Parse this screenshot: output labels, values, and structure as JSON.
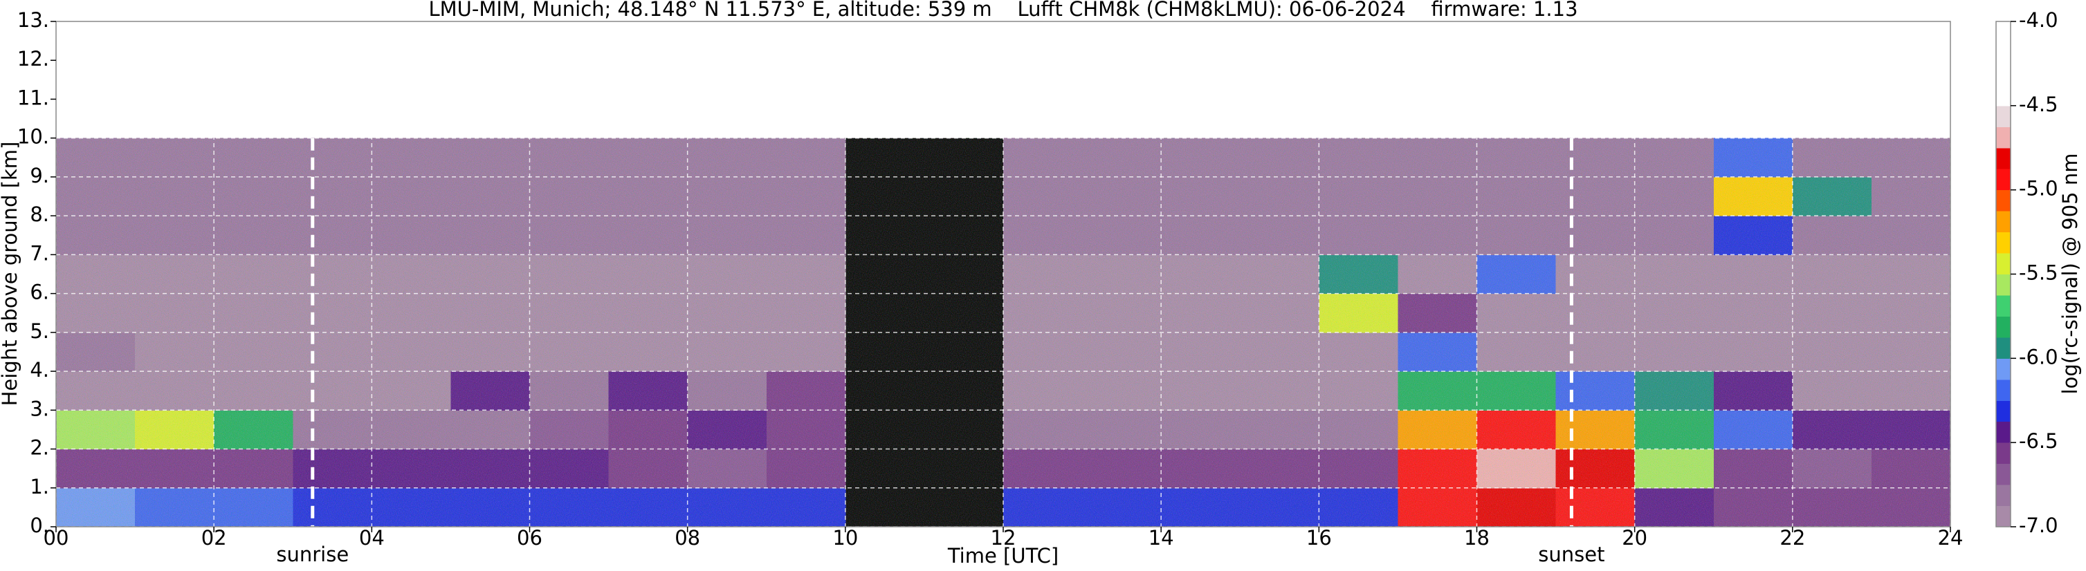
{
  "chart_data": {
    "type": "heatmap",
    "title": "LMU-MIM, Munich; 48.148° N 11.573° E, altitude: 539 m    Lufft CHM8k (CHM8kLMU): 06-06-2024    firmware: 1.13",
    "x_label": "Time [UTC]",
    "y_label": "Height above ground [km]",
    "colorbar_label": "log(rc-signal) @ 905 nm",
    "xlim": [
      0,
      24
    ],
    "ylim": [
      0,
      13
    ],
    "xticks": [
      {
        "value": 0,
        "label": "00"
      },
      {
        "value": 2,
        "label": "02"
      },
      {
        "value": 4,
        "label": "04"
      },
      {
        "value": 6,
        "label": "06"
      },
      {
        "value": 8,
        "label": "08"
      },
      {
        "value": 10,
        "label": "10"
      },
      {
        "value": 12,
        "label": "12"
      },
      {
        "value": 14,
        "label": "14"
      },
      {
        "value": 16,
        "label": "16"
      },
      {
        "value": 18,
        "label": "18"
      },
      {
        "value": 20,
        "label": "20"
      },
      {
        "value": 22,
        "label": "22"
      },
      {
        "value": 24,
        "label": "24"
      }
    ],
    "yticks": [
      {
        "value": 0,
        "label": "0."
      },
      {
        "value": 1,
        "label": "1."
      },
      {
        "value": 2,
        "label": "2."
      },
      {
        "value": 3,
        "label": "3."
      },
      {
        "value": 4,
        "label": "4."
      },
      {
        "value": 5,
        "label": "5."
      },
      {
        "value": 6,
        "label": "6."
      },
      {
        "value": 7,
        "label": "7."
      },
      {
        "value": 8,
        "label": "8."
      },
      {
        "value": 9,
        "label": "9."
      },
      {
        "value": 10,
        "label": "10."
      },
      {
        "value": 11,
        "label": "11."
      },
      {
        "value": 12,
        "label": "12."
      },
      {
        "value": 13,
        "label": "13."
      }
    ],
    "zlim": [
      -7,
      -4
    ],
    "zticks": [
      {
        "value": -4,
        "label": "-4.0"
      },
      -4.5,
      {
        "value": -5,
        "label": "-5.0"
      },
      -5.5,
      {
        "value": -6,
        "label": "-6.0"
      },
      -6.5,
      {
        "value": -7,
        "label": "-7.0"
      }
    ],
    "colors": [
      "#a88aa8",
      "#9a76a0",
      "#8a5896",
      "#7a3a8a",
      "#5a1a8a",
      "#1f2ee0",
      "#3f66f0",
      "#6f9af5",
      "#1f8f7f",
      "#22b060",
      "#3fd070",
      "#a8e860",
      "#d8ef30",
      "#ffd000",
      "#ffa000",
      "#ff5500",
      "#ff1010",
      "#e80000",
      "#f0b0b0",
      "#e8d8dc",
      "#ffffff",
      "#ffffff",
      "#ffffff",
      "#ffffff"
    ],
    "grid": true,
    "xbins": [
      0,
      1,
      2,
      3,
      4,
      5,
      6,
      7,
      8,
      9,
      10,
      11,
      12,
      13,
      14,
      15,
      16,
      17,
      18,
      19,
      20,
      21,
      22,
      23,
      24
    ],
    "ybins": [
      0,
      1,
      2,
      3,
      4,
      5,
      6,
      7,
      8,
      9,
      10
    ],
    "z": [
      [
        -6.1,
        -6.2,
        -6.2,
        -6.3,
        -6.3,
        -6.3,
        -6.3,
        -6.3,
        -6.3,
        -6.3,
        null,
        null,
        -6.3,
        -6.3,
        -6.3,
        -6.3,
        -6.3,
        -5.0,
        -4.8,
        -5.0,
        -6.4,
        -6.6,
        -6.6,
        -6.6
      ],
      [
        -6.6,
        -6.6,
        -6.6,
        -6.5,
        -6.4,
        -6.4,
        -6.5,
        -6.6,
        -6.7,
        -6.6,
        null,
        null,
        -6.6,
        -6.6,
        -6.6,
        -6.6,
        -6.6,
        -5.0,
        -4.7,
        -4.8,
        -5.6,
        -6.6,
        -6.7,
        -6.6
      ],
      [
        -5.6,
        -5.5,
        -5.8,
        -6.8,
        -6.8,
        -6.8,
        -6.7,
        -6.6,
        -6.5,
        -6.6,
        null,
        null,
        -6.8,
        -6.8,
        -6.8,
        -6.8,
        -6.8,
        -5.2,
        -5.0,
        -5.2,
        -5.8,
        -6.2,
        -6.4,
        -6.4
      ],
      [
        -6.9,
        -6.9,
        -6.9,
        -6.9,
        -6.9,
        -6.5,
        -6.8,
        -6.5,
        -6.8,
        -6.6,
        null,
        null,
        -6.9,
        -6.9,
        -6.9,
        -6.9,
        -6.9,
        -5.8,
        -5.8,
        -6.2,
        -6.0,
        -6.5,
        -6.9,
        -6.9
      ],
      [
        -6.8,
        -6.9,
        -6.9,
        -6.9,
        -6.9,
        -6.9,
        -6.9,
        -6.9,
        -6.9,
        -6.9,
        null,
        null,
        -6.9,
        -6.9,
        -6.9,
        -6.9,
        -6.9,
        -6.2,
        -6.9,
        -6.9,
        -6.9,
        -6.9,
        -6.9,
        -6.9
      ],
      [
        -6.9,
        -6.9,
        -6.9,
        -6.9,
        -6.9,
        -6.9,
        -6.9,
        -6.9,
        -6.9,
        -6.9,
        null,
        null,
        -6.9,
        -6.9,
        -6.9,
        -6.9,
        -5.5,
        -6.6,
        -6.9,
        -6.9,
        -6.9,
        -6.9,
        -6.9,
        -6.9
      ],
      [
        -6.9,
        -6.9,
        -6.9,
        -6.9,
        -6.9,
        -6.9,
        -6.9,
        -6.9,
        -6.9,
        -6.9,
        null,
        null,
        -6.9,
        -6.9,
        -6.9,
        -6.9,
        -6.0,
        -6.9,
        -6.2,
        -6.9,
        -6.9,
        -6.9,
        -6.9,
        -6.9
      ],
      [
        -6.8,
        -6.8,
        -6.8,
        -6.8,
        -6.8,
        -6.8,
        -6.8,
        -6.8,
        -6.8,
        -6.8,
        null,
        null,
        -6.8,
        -6.8,
        -6.8,
        -6.8,
        -6.8,
        -6.8,
        -6.8,
        -6.8,
        -6.8,
        -6.3,
        -6.8,
        -6.8
      ],
      [
        -6.8,
        -6.8,
        -6.8,
        -6.8,
        -6.8,
        -6.8,
        -6.8,
        -6.8,
        -6.8,
        -6.8,
        null,
        null,
        -6.8,
        -6.8,
        -6.8,
        -6.8,
        -6.8,
        -6.8,
        -6.8,
        -6.8,
        -6.8,
        -5.3,
        -6.0,
        -6.8
      ],
      [
        -6.8,
        -6.8,
        -6.8,
        -6.8,
        -6.8,
        -6.8,
        -6.8,
        -6.8,
        -6.8,
        -6.8,
        null,
        null,
        -6.8,
        -6.8,
        -6.8,
        -6.8,
        -6.8,
        -6.8,
        -6.8,
        -6.8,
        -6.8,
        -6.2,
        -6.8,
        -6.8
      ]
    ],
    "annotations": [
      {
        "text": "sunrise",
        "x": 3.25
      },
      {
        "text": "sunset",
        "x": 19.2
      }
    ]
  }
}
